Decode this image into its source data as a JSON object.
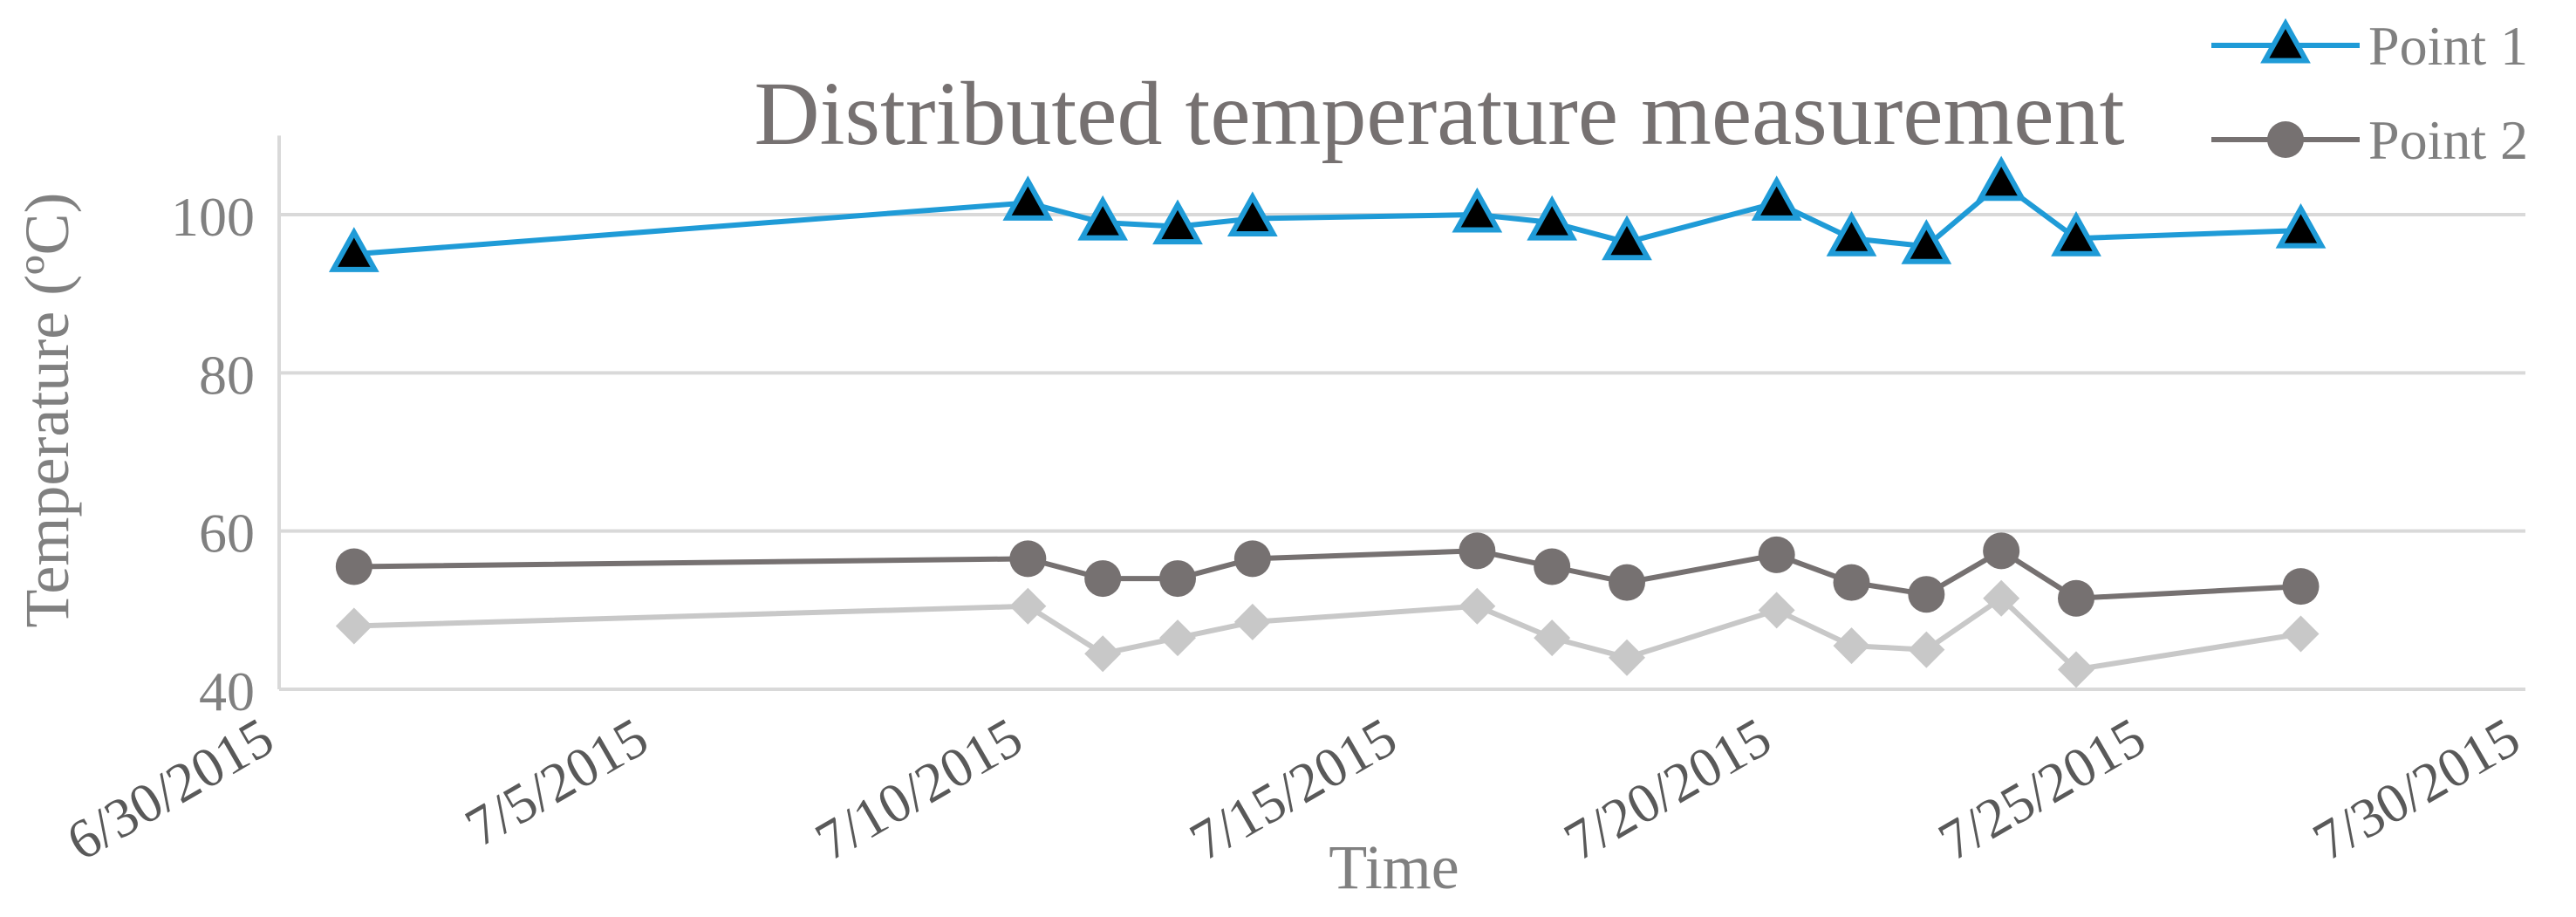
{
  "chart_data": {
    "type": "line",
    "title": "Distributed temperature measurement",
    "xlabel": "Time",
    "ylabel": "Temperature (ºC)",
    "x_type": "date",
    "xlim": [
      "6/30/2015",
      "7/30/2015"
    ],
    "x_ticks": [
      "6/30/2015",
      "7/5/2015",
      "7/10/2015",
      "7/15/2015",
      "7/20/2015",
      "7/25/2015",
      "7/30/2015"
    ],
    "ylim": [
      40,
      110
    ],
    "y_ticks": [
      "40",
      "60",
      "80",
      "100"
    ],
    "grid": "horizontal",
    "legend_position": "top-right",
    "x": [
      "7/1/2015",
      "7/10/2015",
      "7/11/2015",
      "7/12/2015",
      "7/13/2015",
      "7/16/2015",
      "7/17/2015",
      "7/18/2015",
      "7/20/2015",
      "7/21/2015",
      "7/22/2015",
      "7/23/2015",
      "7/24/2015",
      "7/27/2015"
    ],
    "series": [
      {
        "name": "Point 1",
        "color": "#1f9bd7",
        "marker": "triangle",
        "values": [
          95,
          101.5,
          99,
          98.5,
          99.5,
          100,
          99,
          96.5,
          101.5,
          97,
          96,
          104,
          97,
          98
        ]
      },
      {
        "name": "Point 2",
        "color": "#767171",
        "marker": "circle",
        "values": [
          55.5,
          56.5,
          54,
          54,
          56.5,
          57.5,
          55.5,
          53.5,
          57,
          53.5,
          52,
          57.5,
          51.5,
          53
        ]
      },
      {
        "color": "#c8c8c8",
        "marker": "diamond",
        "values": [
          48,
          50.5,
          44.5,
          46.5,
          48.5,
          50.5,
          46.5,
          44,
          50,
          45.5,
          45,
          51.5,
          42.5,
          47
        ]
      }
    ]
  }
}
